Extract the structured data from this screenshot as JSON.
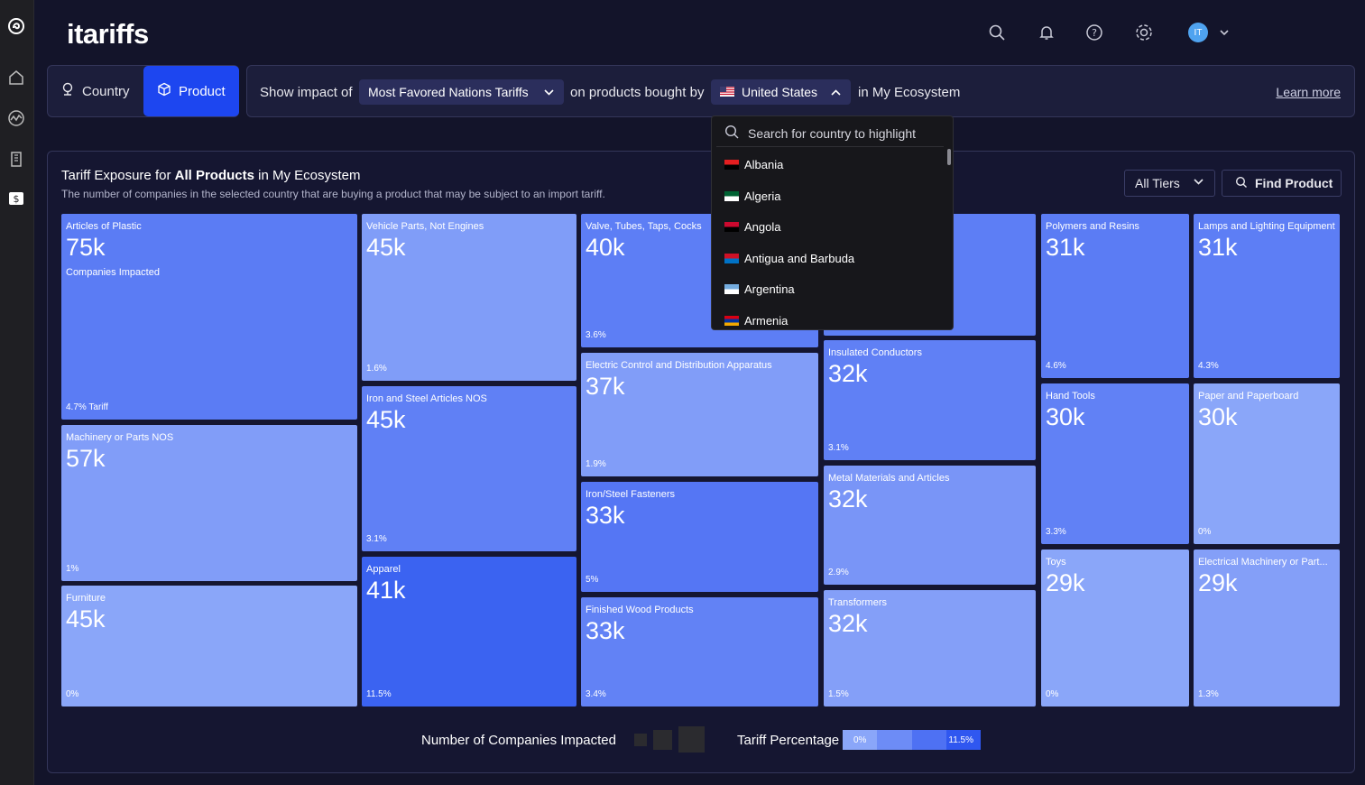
{
  "app": {
    "logo": "itariffs"
  },
  "header": {
    "avatar_initials": "IT"
  },
  "rail": {
    "icons": [
      "brand-icon",
      "home-icon",
      "activity-icon",
      "building-icon",
      "dollar-icon"
    ]
  },
  "mode_toggle": {
    "country_label": "Country",
    "product_label": "Product",
    "selected": "Product"
  },
  "filter_bar": {
    "prefix": "Show impact of",
    "tariff_type": "Most Favored Nations Tariffs",
    "middle": "on products bought by",
    "country": "United States",
    "suffix": "in My Ecosystem",
    "learn_more": "Learn more"
  },
  "panel": {
    "title_pre": "Tariff Exposure for ",
    "title_bold": "All Products",
    "title_post": " in My Ecosystem",
    "subtitle": "The number of companies in the selected country that are buying a product that may be subject to an import tariff.",
    "tiers_label": "All Tiers",
    "find_product_label": "Find Product"
  },
  "treemap": {
    "tiles": [
      {
        "name": "Articles of Plastic",
        "value": "75k",
        "sub": "Companies Impacted",
        "tariff": "4.7% Tariff",
        "color": "#5b7cf4"
      },
      {
        "name": "Machinery or Parts NOS",
        "value": "57k",
        "sub": "",
        "tariff": "1%",
        "color": "#819df8"
      },
      {
        "name": "Furniture",
        "value": "45k",
        "sub": "",
        "tariff": "0%",
        "color": "#8aa6f9"
      },
      {
        "name": "Vehicle Parts, Not Engines",
        "value": "45k",
        "sub": "",
        "tariff": "1.6%",
        "color": "#809df8"
      },
      {
        "name": "Iron and Steel Articles NOS",
        "value": "45k",
        "sub": "",
        "tariff": "3.1%",
        "color": "#6080f5"
      },
      {
        "name": "Apparel",
        "value": "41k",
        "sub": "",
        "tariff": "11.5%",
        "color": "#3b63f1"
      },
      {
        "name": "Valve, Tubes, Taps, Cocks",
        "value": "40k",
        "sub": "",
        "tariff": "3.6%",
        "color": "#5d7ef5"
      },
      {
        "name": "Electric Control and Distribution Apparatus",
        "value": "37k",
        "sub": "",
        "tariff": "1.9%",
        "color": "#819df8"
      },
      {
        "name": "Iron/Steel Fasteners",
        "value": "33k",
        "sub": "",
        "tariff": "5%",
        "color": "#5576f4"
      },
      {
        "name": "Finished Wood Products",
        "value": "33k",
        "sub": "",
        "tariff": "3.4%",
        "color": "#6282f5"
      },
      {
        "name": "",
        "value": "",
        "sub": "",
        "tariff": "",
        "color": "#5d7ef5"
      },
      {
        "name": "Insulated Conductors",
        "value": "32k",
        "sub": "",
        "tariff": "3.1%",
        "color": "#6080f5"
      },
      {
        "name": "Metal Materials and Articles",
        "value": "32k",
        "sub": "",
        "tariff": "2.9%",
        "color": "#7995f7"
      },
      {
        "name": "Transformers",
        "value": "32k",
        "sub": "",
        "tariff": "1.5%",
        "color": "#849ff8"
      },
      {
        "name": "Polymers and Resins",
        "value": "31k",
        "sub": "",
        "tariff": "4.6%",
        "color": "#5b7cf4"
      },
      {
        "name": "Hand Tools",
        "value": "30k",
        "sub": "",
        "tariff": "3.3%",
        "color": "#6181f5"
      },
      {
        "name": "Toys",
        "value": "29k",
        "sub": "",
        "tariff": "0%",
        "color": "#8aa6f9"
      },
      {
        "name": "Lamps and Lighting Equipment",
        "value": "31k",
        "sub": "",
        "tariff": "4.3%",
        "color": "#5d7ef5"
      },
      {
        "name": "Paper and Paperboard",
        "value": "30k",
        "sub": "",
        "tariff": "0%",
        "color": "#8aa6f9"
      },
      {
        "name": "Electrical Machinery or Part...",
        "value": "29k",
        "sub": "",
        "tariff": "1.3%",
        "color": "#849ff8"
      }
    ]
  },
  "legend": {
    "companies_label": "Number of Companies Impacted",
    "tariff_label": "Tariff Percentage",
    "tariff_min": "0%",
    "tariff_max": "11.5%",
    "gradient_colors": [
      "#8aa6f9",
      "#6d8cf6",
      "#4e71f3",
      "#2f57f0"
    ]
  },
  "country_dropdown": {
    "search_placeholder": "Search for country to highlight",
    "items": [
      {
        "label": "Albania",
        "flag_colors": [
          "#e41e20",
          "#000000"
        ]
      },
      {
        "label": "Algeria",
        "flag_colors": [
          "#006233",
          "#ffffff"
        ]
      },
      {
        "label": "Angola",
        "flag_colors": [
          "#cc092f",
          "#000000"
        ]
      },
      {
        "label": "Antigua and Barbuda",
        "flag_colors": [
          "#ce1126",
          "#0072c6"
        ]
      },
      {
        "label": "Argentina",
        "flag_colors": [
          "#74acdf",
          "#ffffff"
        ]
      },
      {
        "label": "Armenia",
        "flag_colors": [
          "#d90012",
          "#0033a0",
          "#f2a800"
        ]
      }
    ]
  }
}
